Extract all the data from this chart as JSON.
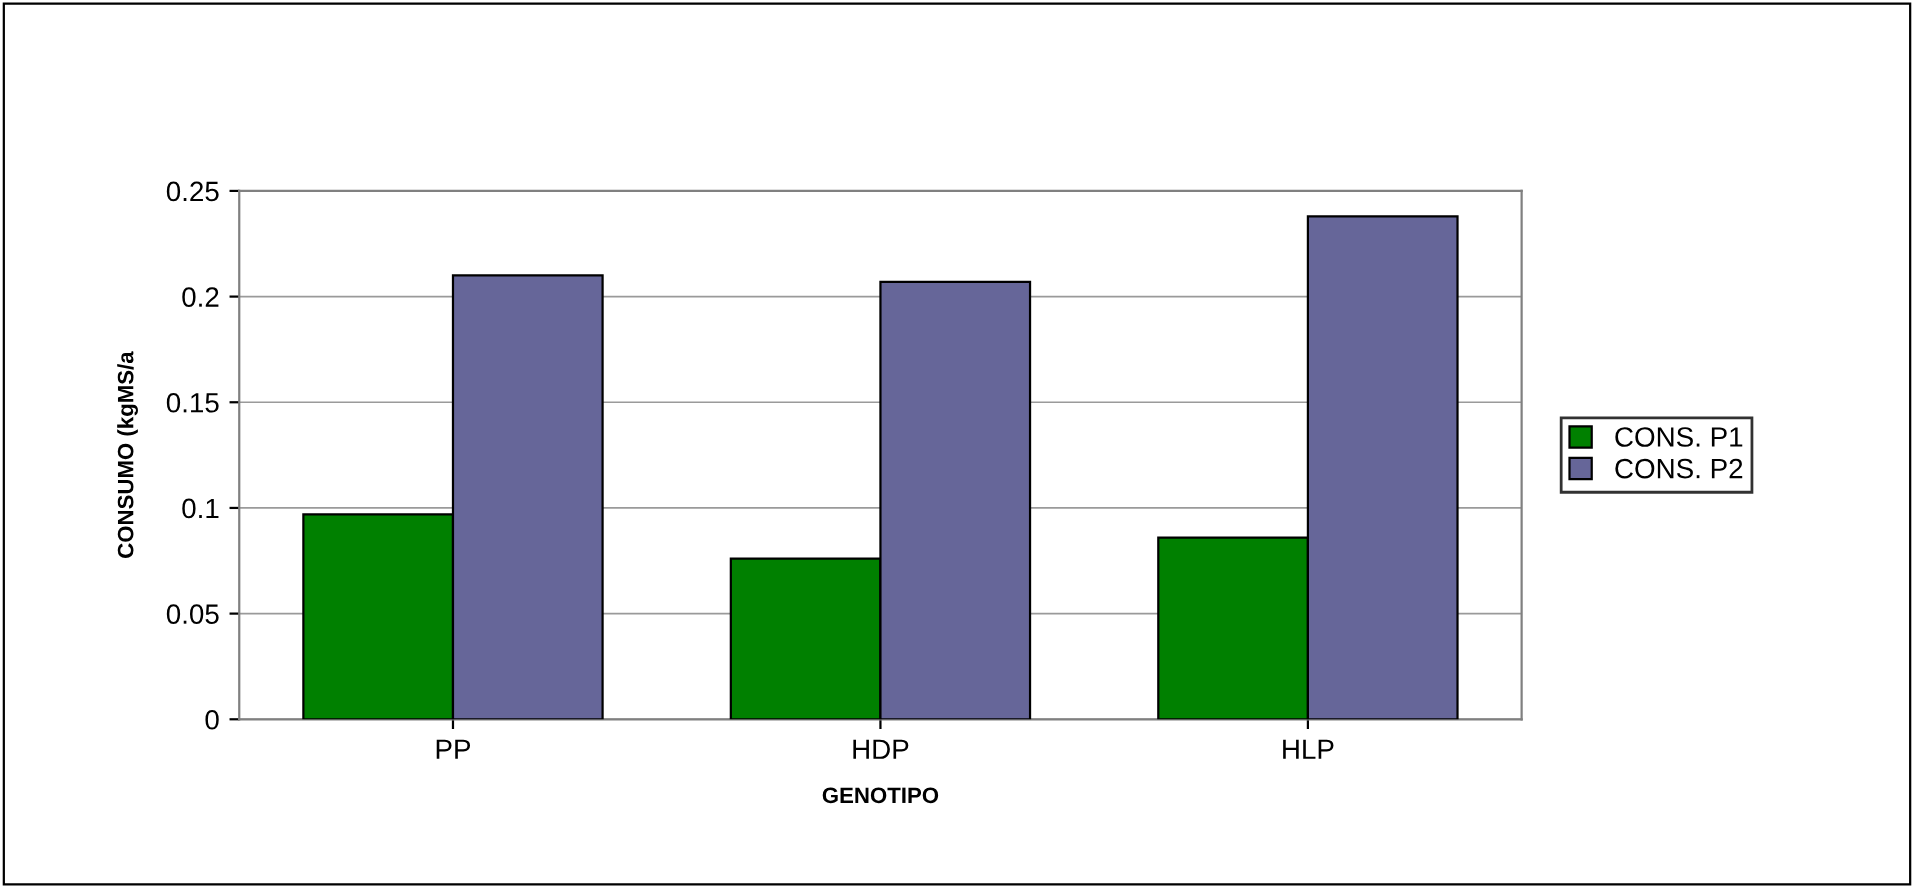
{
  "chart_data": {
    "type": "bar",
    "xlabel": "GENOTIPO",
    "ylabel": "CONSUMO (kgMS/a",
    "categories": [
      "PP",
      "HDP",
      "HLP"
    ],
    "series": [
      {
        "name": "CONS. P1",
        "color": "#008000",
        "values": [
          0.097,
          0.076,
          0.086
        ]
      },
      {
        "name": "CONS. P2",
        "color": "#666699",
        "values": [
          0.21,
          0.207,
          0.238
        ]
      }
    ],
    "ylim": [
      0,
      0.25
    ],
    "yticks": [
      0,
      0.05,
      0.1,
      0.15,
      0.2,
      0.25
    ],
    "grid": "y",
    "legend": "right"
  }
}
